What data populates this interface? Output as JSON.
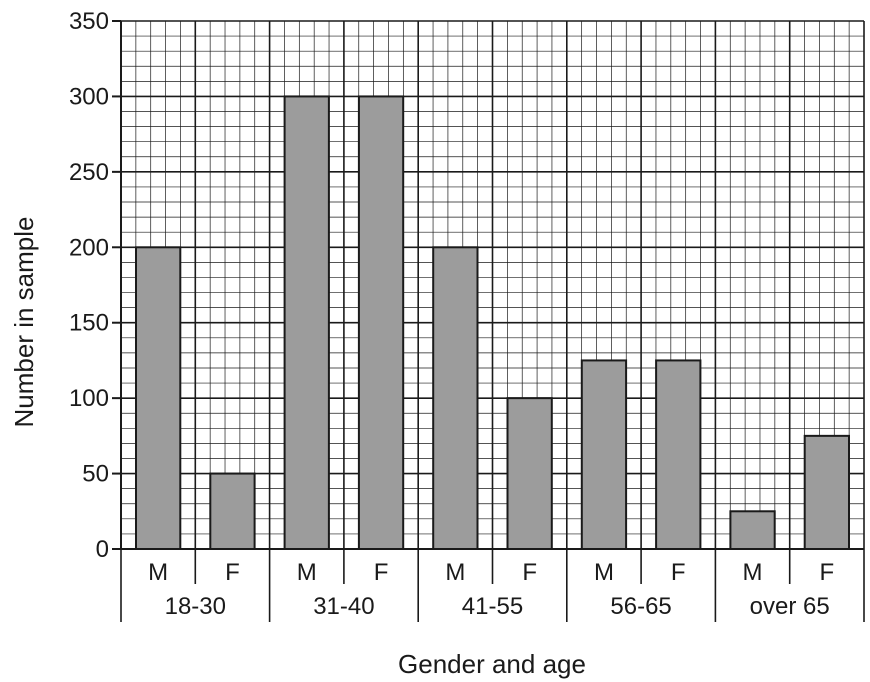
{
  "chart_data": {
    "type": "bar",
    "xlabel": "Gender and age",
    "ylabel": "Number in sample",
    "ylim": [
      0,
      350
    ],
    "yticks": [
      0,
      50,
      100,
      150,
      200,
      250,
      300,
      350
    ],
    "grid": true,
    "minor_grid_step": 10,
    "groups": [
      {
        "label": "18-30",
        "bars": [
          {
            "label": "M",
            "value": 200
          },
          {
            "label": "F",
            "value": 50
          }
        ]
      },
      {
        "label": "31-40",
        "bars": [
          {
            "label": "M",
            "value": 300
          },
          {
            "label": "F",
            "value": 300
          }
        ]
      },
      {
        "label": "41-55",
        "bars": [
          {
            "label": "M",
            "value": 200
          },
          {
            "label": "F",
            "value": 100
          }
        ]
      },
      {
        "label": "56-65",
        "bars": [
          {
            "label": "M",
            "value": 125
          },
          {
            "label": "F",
            "value": 125
          }
        ]
      },
      {
        "label": "over 65",
        "bars": [
          {
            "label": "M",
            "value": 25
          },
          {
            "label": "F",
            "value": 75
          }
        ]
      }
    ],
    "bar_color": "#9c9c9c",
    "bar_stroke": "#1a1a1a",
    "grid_color": "#1a1a1a"
  }
}
